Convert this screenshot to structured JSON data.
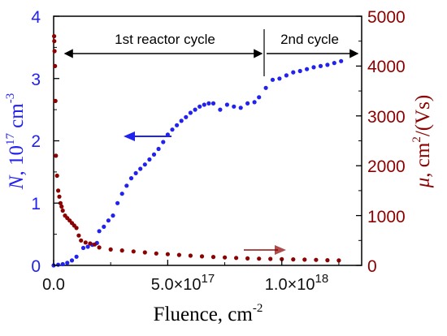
{
  "chart_data": {
    "type": "scatter",
    "xlabel": "Fluence, cm",
    "xlabel_exp": "-2",
    "xlim": [
      0,
      1.35e+18
    ],
    "x_ticks": [
      {
        "value": 0,
        "label": "0.0"
      },
      {
        "value": 5e+17,
        "label": "5.0×10",
        "exp": "17"
      },
      {
        "value": 1e+18,
        "label": "1.0×10",
        "exp": "18"
      }
    ],
    "y_left": {
      "label_var": "N",
      "label_rest": ", 10",
      "label_exp": "17",
      "label_unit": " cm",
      "label_unit_exp": "-3",
      "ylim": [
        0,
        4
      ],
      "ticks": [
        "0",
        "1",
        "2",
        "3",
        "4"
      ],
      "color": "#2222ee"
    },
    "y_right": {
      "label_var": "μ",
      "label_rest": ", cm",
      "label_exp": "2",
      "label_unit": "/(Vs)",
      "ylim": [
        0,
        5000
      ],
      "ticks": [
        "0",
        "1000",
        "2000",
        "3000",
        "4000",
        "5000"
      ],
      "color": "#8b0000"
    },
    "annotations": {
      "cycle1": "1st reactor cycle",
      "cycle2": "2nd cycle",
      "cycle1_range": [
        0,
        9e+17
      ],
      "cycle2_range": [
        9e+17,
        1.35e+18
      ]
    },
    "series": [
      {
        "axis": "left",
        "color": "#2222ee",
        "points": [
          [
            0,
            0.0
          ],
          [
            2e+16,
            0.01
          ],
          [
            4e+16,
            0.02
          ],
          [
            6e+16,
            0.04
          ],
          [
            8e+16,
            0.08
          ],
          [
            1e+17,
            0.14
          ],
          [
            1.3e+17,
            0.28
          ],
          [
            1.5e+17,
            0.3
          ],
          [
            1.7e+17,
            0.33
          ],
          [
            1.9e+17,
            0.36
          ],
          [
            2e+17,
            0.55
          ],
          [
            2.2e+17,
            0.62
          ],
          [
            2.4e+17,
            0.72
          ],
          [
            2.6e+17,
            0.8
          ],
          [
            2.8e+17,
            1.0
          ],
          [
            3e+17,
            1.15
          ],
          [
            3.2e+17,
            1.28
          ],
          [
            3.4e+17,
            1.4
          ],
          [
            3.6e+17,
            1.48
          ],
          [
            3.8e+17,
            1.55
          ],
          [
            4e+17,
            1.62
          ],
          [
            4.2e+17,
            1.7
          ],
          [
            4.4e+17,
            1.78
          ],
          [
            4.6e+17,
            1.87
          ],
          [
            4.8e+17,
            1.98
          ],
          [
            5e+17,
            2.1
          ],
          [
            5.2e+17,
            2.18
          ],
          [
            5.4e+17,
            2.25
          ],
          [
            5.6e+17,
            2.32
          ],
          [
            5.8e+17,
            2.38
          ],
          [
            6e+17,
            2.45
          ],
          [
            6.2e+17,
            2.5
          ],
          [
            6.4e+17,
            2.55
          ],
          [
            6.6e+17,
            2.58
          ],
          [
            6.8e+17,
            2.6
          ],
          [
            7e+17,
            2.6
          ],
          [
            7.3e+17,
            2.5
          ],
          [
            7.6e+17,
            2.58
          ],
          [
            7.9e+17,
            2.55
          ],
          [
            8.2e+17,
            2.53
          ],
          [
            8.5e+17,
            2.6
          ],
          [
            8.8e+17,
            2.62
          ],
          [
            9e+17,
            2.7
          ],
          [
            9.3e+17,
            2.85
          ],
          [
            9.6e+17,
            2.98
          ],
          [
            9.9e+17,
            3.0
          ],
          [
            1.02e+18,
            3.05
          ],
          [
            1.05e+18,
            3.1
          ],
          [
            1.08e+18,
            3.12
          ],
          [
            1.11e+18,
            3.15
          ],
          [
            1.14e+18,
            3.18
          ],
          [
            1.17e+18,
            3.2
          ],
          [
            1.2e+18,
            3.22
          ],
          [
            1.23e+18,
            3.25
          ],
          [
            1.26e+18,
            3.28
          ]
        ]
      },
      {
        "axis": "right",
        "color": "#8b0000",
        "points": [
          [
            2000000000000000.0,
            4600
          ],
          [
            3000000000000000.0,
            4500
          ],
          [
            4000000000000000.0,
            4300
          ],
          [
            6000000000000000.0,
            4000
          ],
          [
            8000000000000000.0,
            3300
          ],
          [
            1e+16,
            2200
          ],
          [
            1.5e+16,
            1800
          ],
          [
            2e+16,
            1500
          ],
          [
            2.5e+16,
            1380
          ],
          [
            3e+16,
            1250
          ],
          [
            3.5e+16,
            1180
          ],
          [
            4e+16,
            1100
          ],
          [
            5e+16,
            1000
          ],
          [
            6e+16,
            950
          ],
          [
            7e+16,
            900
          ],
          [
            8e+16,
            850
          ],
          [
            9e+16,
            800
          ],
          [
            1e+17,
            750
          ],
          [
            1.1e+17,
            600
          ],
          [
            1.2e+17,
            500
          ],
          [
            1.4e+17,
            460
          ],
          [
            1.6e+17,
            440
          ],
          [
            1.8e+17,
            420
          ],
          [
            2e+17,
            360
          ],
          [
            2.5e+17,
            320
          ],
          [
            3e+17,
            300
          ],
          [
            3.5e+17,
            280
          ],
          [
            4e+17,
            260
          ],
          [
            4.5e+17,
            240
          ],
          [
            5e+17,
            225
          ],
          [
            5.5e+17,
            210
          ],
          [
            6e+17,
            195
          ],
          [
            6.5e+17,
            180
          ],
          [
            7e+17,
            170
          ],
          [
            7.5e+17,
            160
          ],
          [
            8e+17,
            150
          ],
          [
            8.5e+17,
            140
          ],
          [
            9e+17,
            135
          ],
          [
            9.5e+17,
            130
          ],
          [
            1e+18,
            125
          ],
          [
            1.05e+18,
            120
          ],
          [
            1.1e+18,
            115
          ],
          [
            1.15e+18,
            110
          ],
          [
            1.2e+18,
            105
          ],
          [
            1.25e+18,
            100
          ]
        ]
      }
    ]
  }
}
